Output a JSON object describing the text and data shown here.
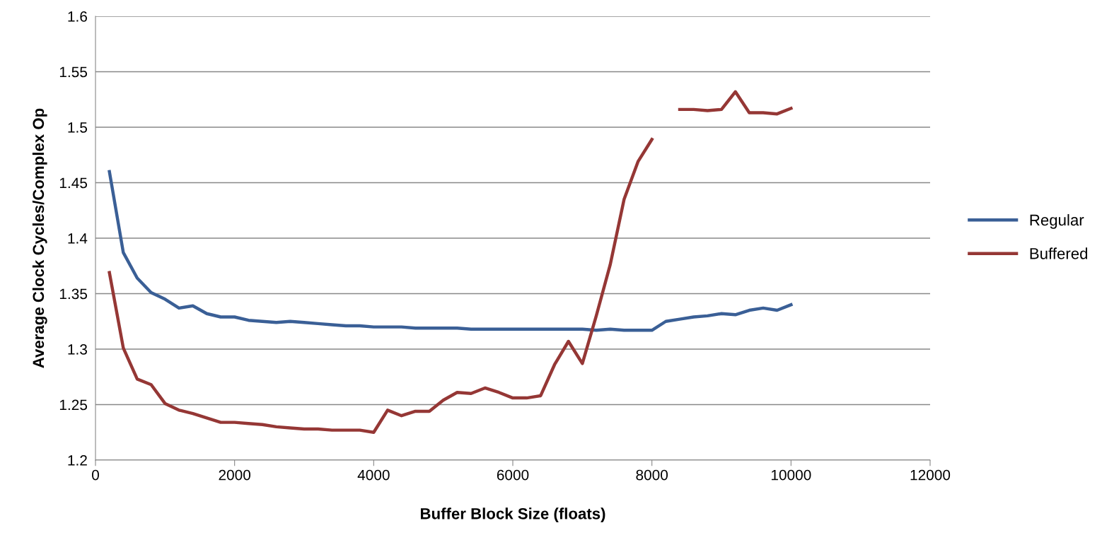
{
  "chart_data": {
    "type": "line",
    "xlabel": "Buffer Block Size (floats)",
    "ylabel": "Average Clock Cycles/Complex Op",
    "x": [
      200,
      400,
      600,
      800,
      1000,
      1200,
      1400,
      1600,
      1800,
      2000,
      2200,
      2400,
      2600,
      2800,
      3000,
      3200,
      3400,
      3600,
      3800,
      4000,
      4200,
      4400,
      4600,
      4800,
      5000,
      5200,
      5400,
      5600,
      5800,
      6000,
      6200,
      6400,
      6600,
      6800,
      7000,
      7200,
      7400,
      7600,
      7800,
      8000,
      8200,
      8400,
      8600,
      8800,
      9000,
      9200,
      9400,
      9600,
      9800,
      10000
    ],
    "series": [
      {
        "name": "Regular",
        "color": "#3a5f96",
        "values": [
          1.46,
          1.387,
          1.364,
          1.351,
          1.345,
          1.337,
          1.339,
          1.332,
          1.329,
          1.329,
          1.326,
          1.325,
          1.324,
          1.325,
          1.324,
          1.323,
          1.322,
          1.321,
          1.321,
          1.32,
          1.32,
          1.32,
          1.319,
          1.319,
          1.319,
          1.319,
          1.318,
          1.318,
          1.318,
          1.318,
          1.318,
          1.318,
          1.318,
          1.318,
          1.318,
          1.317,
          1.318,
          1.317,
          1.317,
          1.317,
          1.325,
          1.327,
          1.329,
          1.33,
          1.332,
          1.331,
          1.335,
          1.337,
          1.335,
          1.34
        ]
      },
      {
        "name": "Buffered",
        "color": "#953735",
        "values": [
          1.369,
          1.301,
          1.273,
          1.268,
          1.251,
          1.245,
          1.242,
          1.238,
          1.234,
          1.234,
          1.233,
          1.232,
          1.23,
          1.229,
          1.228,
          1.228,
          1.227,
          1.227,
          1.227,
          1.225,
          1.245,
          1.24,
          1.244,
          1.244,
          1.254,
          1.261,
          1.26,
          1.265,
          1.261,
          1.256,
          1.256,
          1.258,
          1.286,
          1.307,
          1.287,
          1.33,
          1.376,
          1.435,
          1.469,
          1.489,
          null,
          1.516,
          1.516,
          1.515,
          1.516,
          1.532,
          1.513,
          1.513,
          1.512,
          1.517
        ]
      }
    ],
    "xlim": [
      0,
      12000
    ],
    "xticks": [
      0,
      2000,
      4000,
      6000,
      8000,
      10000,
      12000
    ],
    "ylim": [
      1.2,
      1.6
    ],
    "yticks": [
      {
        "value": 1.2,
        "label": "1.2"
      },
      {
        "value": 1.25,
        "label": "1.25"
      },
      {
        "value": 1.3,
        "label": "1.3"
      },
      {
        "value": 1.35,
        "label": "1.35"
      },
      {
        "value": 1.4,
        "label": "1.4"
      },
      {
        "value": 1.45,
        "label": "1.45"
      },
      {
        "value": 1.5,
        "label": "1.5"
      },
      {
        "value": 1.55,
        "label": "1.55"
      },
      {
        "value": 1.6,
        "label": "1.6"
      }
    ],
    "grid": "y",
    "legend": "right",
    "marker": "none",
    "line_style": "solid"
  }
}
